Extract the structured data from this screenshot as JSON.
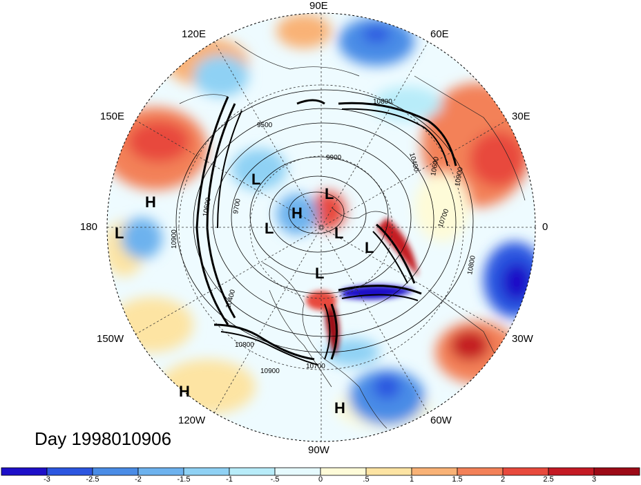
{
  "date_label": "Day 1998010906",
  "longitude_labels": {
    "e90": "90E",
    "e60": "60E",
    "e30": "30E",
    "zero": "0",
    "w30": "30W",
    "w60": "60W",
    "w90": "90W",
    "w120": "120W",
    "w150": "150W",
    "d180": "180",
    "e150": "150E",
    "e120": "120E"
  },
  "pressure_centers": {
    "h1": "H",
    "h2": "H",
    "h3": "H",
    "h4": "H",
    "l1": "L",
    "l2": "L",
    "l3": "L",
    "l4": "L",
    "l5": "L",
    "l6": "L",
    "l7": "L"
  },
  "contour_labels": [
    "9500",
    "9900",
    "10400",
    "10600",
    "10700",
    "10800",
    "10900",
    "10700",
    "10800",
    "10900",
    "10400",
    "10600",
    "10800",
    "10900",
    "9700"
  ],
  "colorbar": {
    "ticks": [
      "-3",
      "-2.5",
      "-2",
      "-1.5",
      "-1",
      "-.5",
      "0",
      ".5",
      "1",
      "1.5",
      "2",
      "2.5",
      "3"
    ],
    "colors": [
      "#1d0fc8",
      "#2c56e0",
      "#4a8ce6",
      "#6db2ee",
      "#8fd1f4",
      "#b8ecf9",
      "#e6fafe",
      "#fefbd8",
      "#fde4a3",
      "#f9b276",
      "#f38158",
      "#e84a3d",
      "#c41a24",
      "#9c0a17"
    ]
  }
}
